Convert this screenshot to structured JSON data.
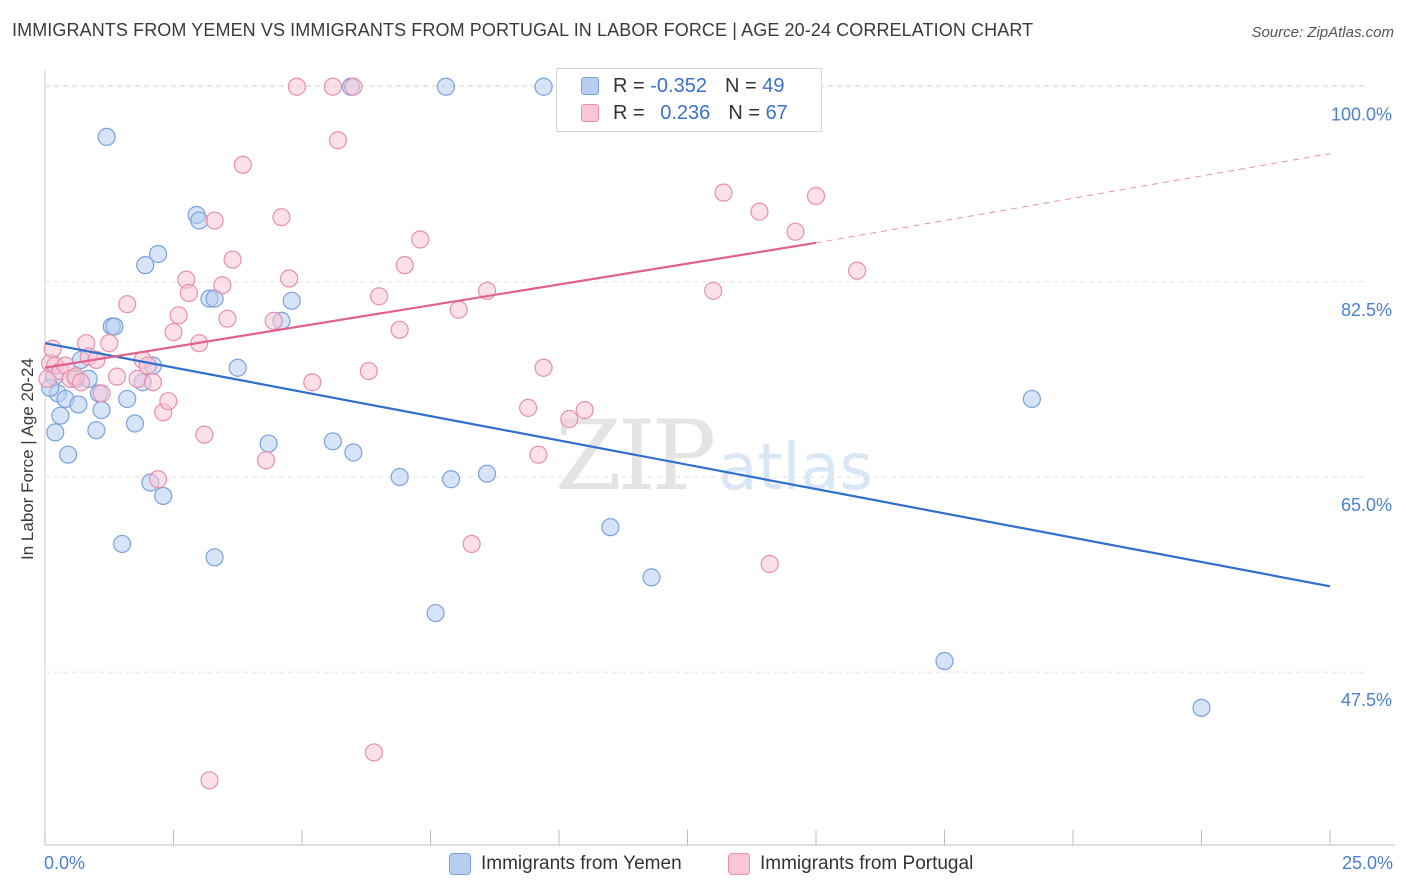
{
  "title": "IMMIGRANTS FROM YEMEN VS IMMIGRANTS FROM PORTUGAL IN LABOR FORCE | AGE 20-24 CORRELATION CHART",
  "source": "Source: ZipAtlas.com",
  "watermark": {
    "zip": "ZIP",
    "atlas": "atlas"
  },
  "legend": {
    "rows": [
      {
        "r_label": "R = ",
        "r_value": "-0.352",
        "n_label": "N = ",
        "n_value": "49"
      },
      {
        "r_label": "R = ",
        "r_value": "0.236",
        "n_label": "N = ",
        "n_value": "67"
      }
    ]
  },
  "colors": {
    "yemen_fill": "#b7cef2",
    "yemen_stroke": "#7aa1dc",
    "yemen_line": "#2f6fd0",
    "portugal_fill": "#f8c6d6",
    "portugal_stroke": "#e88fae",
    "portugal_line": "#e0608e",
    "grid": "#e3e3e3",
    "tick_label": "#4a7fd4"
  },
  "chart_data": {
    "type": "scatter",
    "ylabel": "In Labor Force | Age 20-24",
    "xlim": [
      0,
      25
    ],
    "ylim": [
      32,
      101.5
    ],
    "x_tick_labels": [
      "0.0%",
      "25.0%"
    ],
    "y_ticks": [
      47.5,
      65.0,
      82.5,
      100.0
    ],
    "y_tick_labels": [
      "47.5%",
      "65.0%",
      "82.5%",
      "100.0%"
    ],
    "grid": true,
    "legend_placement": "top-center",
    "series": [
      {
        "name": "Immigrants from Yemen",
        "trend": {
          "x": [
            0,
            25
          ],
          "y": [
            77.0,
            55.2
          ],
          "dashed_from": null
        },
        "points": [
          [
            0.18,
            74.0
          ],
          [
            0.2,
            69.0
          ],
          [
            0.25,
            72.5
          ],
          [
            0.3,
            70.5
          ],
          [
            0.4,
            72.0
          ],
          [
            0.45,
            67.0
          ],
          [
            0.6,
            73.8
          ],
          [
            0.65,
            71.5
          ],
          [
            0.7,
            75.5
          ],
          [
            0.85,
            73.8
          ],
          [
            1.0,
            69.2
          ],
          [
            1.05,
            72.5
          ],
          [
            1.2,
            95.5
          ],
          [
            1.3,
            78.5
          ],
          [
            1.35,
            78.5
          ],
          [
            1.5,
            59.0
          ],
          [
            1.6,
            72.0
          ],
          [
            1.75,
            69.8
          ],
          [
            1.9,
            73.5
          ],
          [
            1.95,
            84.0
          ],
          [
            2.05,
            64.5
          ],
          [
            2.1,
            75.0
          ],
          [
            2.2,
            85.0
          ],
          [
            2.3,
            63.3
          ],
          [
            2.95,
            88.5
          ],
          [
            3.0,
            88.0
          ],
          [
            3.2,
            81.0
          ],
          [
            3.3,
            81.0
          ],
          [
            3.3,
            57.8
          ],
          [
            3.75,
            74.8
          ],
          [
            4.35,
            68.0
          ],
          [
            4.6,
            79.0
          ],
          [
            4.8,
            80.8
          ],
          [
            5.6,
            68.2
          ],
          [
            5.95,
            100.0
          ],
          [
            6.0,
            67.2
          ],
          [
            6.9,
            65.0
          ],
          [
            7.6,
            52.8
          ],
          [
            7.8,
            100.0
          ],
          [
            7.9,
            64.8
          ],
          [
            8.6,
            65.3
          ],
          [
            9.7,
            100.0
          ],
          [
            11.0,
            60.5
          ],
          [
            11.8,
            56.0
          ],
          [
            17.5,
            48.5
          ],
          [
            19.2,
            72.0
          ],
          [
            22.5,
            44.3
          ],
          [
            0.1,
            73.0
          ],
          [
            1.1,
            71.0
          ]
        ]
      },
      {
        "name": "Immigrants from Portugal",
        "trend": {
          "x": [
            0,
            15,
            25
          ],
          "y": [
            74.8,
            86.0,
            94.0
          ],
          "dashed_from": 15
        },
        "points": [
          [
            0.05,
            73.8
          ],
          [
            0.1,
            75.2
          ],
          [
            0.15,
            76.5
          ],
          [
            0.2,
            75.0
          ],
          [
            0.3,
            74.5
          ],
          [
            0.4,
            75.0
          ],
          [
            0.5,
            73.8
          ],
          [
            0.6,
            74.0
          ],
          [
            0.7,
            73.5
          ],
          [
            0.8,
            77.0
          ],
          [
            0.85,
            75.8
          ],
          [
            1.0,
            75.5
          ],
          [
            1.1,
            72.5
          ],
          [
            1.25,
            77.0
          ],
          [
            1.4,
            74.0
          ],
          [
            1.6,
            80.5
          ],
          [
            1.8,
            73.8
          ],
          [
            1.9,
            75.5
          ],
          [
            2.0,
            75.0
          ],
          [
            2.1,
            73.5
          ],
          [
            2.2,
            64.8
          ],
          [
            2.3,
            70.8
          ],
          [
            2.4,
            71.8
          ],
          [
            2.5,
            78.0
          ],
          [
            2.6,
            79.5
          ],
          [
            2.75,
            82.7
          ],
          [
            2.8,
            81.5
          ],
          [
            3.0,
            77.0
          ],
          [
            3.1,
            68.8
          ],
          [
            3.2,
            37.8
          ],
          [
            3.3,
            88.0
          ],
          [
            3.45,
            82.2
          ],
          [
            3.55,
            79.2
          ],
          [
            3.65,
            84.5
          ],
          [
            3.85,
            93.0
          ],
          [
            4.3,
            66.5
          ],
          [
            4.45,
            79.0
          ],
          [
            4.6,
            88.3
          ],
          [
            4.75,
            82.8
          ],
          [
            4.9,
            100.0
          ],
          [
            5.2,
            73.5
          ],
          [
            5.6,
            100.0
          ],
          [
            5.7,
            95.2
          ],
          [
            6.0,
            100.0
          ],
          [
            6.3,
            74.5
          ],
          [
            6.5,
            81.2
          ],
          [
            6.9,
            78.2
          ],
          [
            7.0,
            84.0
          ],
          [
            7.3,
            86.3
          ],
          [
            8.05,
            80.0
          ],
          [
            8.3,
            59.0
          ],
          [
            8.6,
            81.7
          ],
          [
            9.4,
            71.2
          ],
          [
            9.6,
            67.0
          ],
          [
            9.7,
            74.8
          ],
          [
            10.2,
            70.2
          ],
          [
            10.5,
            71.0
          ],
          [
            12.0,
            100.0
          ],
          [
            13.0,
            81.7
          ],
          [
            13.2,
            90.5
          ],
          [
            13.9,
            88.8
          ],
          [
            14.1,
            57.2
          ],
          [
            14.2,
            100.0
          ],
          [
            14.6,
            87.0
          ],
          [
            15.0,
            90.2
          ],
          [
            15.8,
            83.5
          ],
          [
            6.4,
            40.3
          ]
        ]
      }
    ]
  },
  "bottom_legend": [
    {
      "label": "Immigrants from Yemen"
    },
    {
      "label": "Immigrants from Portugal"
    }
  ]
}
